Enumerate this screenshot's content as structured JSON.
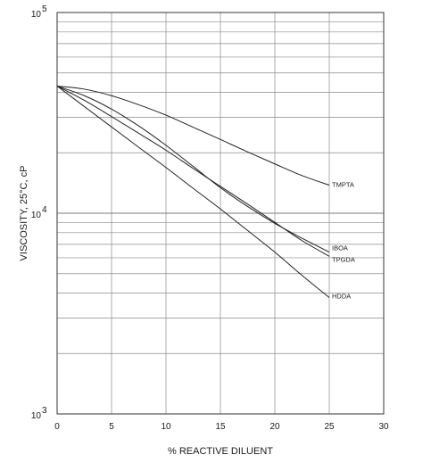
{
  "chart_data": {
    "type": "line",
    "title": "",
    "xlabel": "% REACTIVE DILUENT",
    "ylabel": "VISCOSITY, 25°C, cP",
    "xlim": [
      0,
      30
    ],
    "ylim": [
      1000,
      100000
    ],
    "yscale": "log",
    "grid": true,
    "legend": "labels at line ends",
    "x_ticks": [
      0,
      5,
      10,
      15,
      20,
      25,
      30
    ],
    "y_ticks": [
      {
        "value": 1000,
        "base": "10",
        "exp": "3"
      },
      {
        "value": 10000,
        "base": "10",
        "exp": "4"
      },
      {
        "value": 100000,
        "base": "10",
        "exp": "5"
      }
    ],
    "series": [
      {
        "name": "TMPTA",
        "x": [
          0,
          2.5,
          5,
          7.5,
          10,
          12.5,
          15,
          17.5,
          20,
          22.5,
          25
        ],
        "y": [
          43000,
          41500,
          38500,
          34700,
          30800,
          26800,
          23300,
          20200,
          17600,
          15400,
          13800
        ]
      },
      {
        "name": "IBOA",
        "x": [
          0,
          2.5,
          5,
          7.5,
          10,
          12.5,
          15,
          17.5,
          20,
          22.5,
          25
        ],
        "y": [
          43000,
          38500,
          33000,
          27200,
          21800,
          17100,
          13400,
          10800,
          8900,
          7500,
          6400
        ]
      },
      {
        "name": "TPGDA",
        "x": [
          0,
          2.5,
          5,
          7.5,
          10,
          12.5,
          15,
          17.5,
          20,
          22.5,
          25
        ],
        "y": [
          43000,
          36500,
          30300,
          25000,
          20600,
          16700,
          13600,
          11100,
          9000,
          7300,
          6100
        ]
      },
      {
        "name": "HDDA",
        "x": [
          0,
          2.5,
          5,
          7.5,
          10,
          12.5,
          15,
          17.5,
          20,
          22.5,
          25
        ],
        "y": [
          43000,
          34000,
          26900,
          21300,
          16900,
          13300,
          10500,
          8200,
          6400,
          4900,
          3800
        ]
      }
    ]
  }
}
